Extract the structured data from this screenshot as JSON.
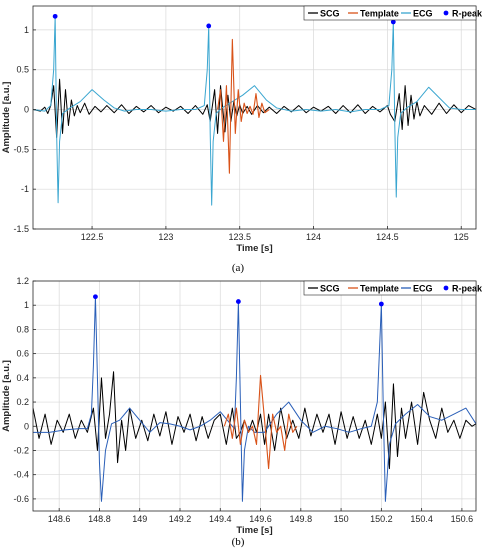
{
  "colors": {
    "SCG": "#000000",
    "Template": "#d95319",
    "ECG": "#3aa6d0",
    "ECG2": "#2a5fb8",
    "R-peaks": "#0000ff",
    "grid": "#d9d9d9",
    "axis": "#262626"
  },
  "chart_data": [
    {
      "type": "line",
      "caption": "(a)",
      "xlabel": "Time [s]",
      "ylabel": "Amplitude [a.u.]",
      "xlim": [
        122.1,
        125.1
      ],
      "ylim": [
        -1.5,
        1.3
      ],
      "xticks": [
        122.5,
        123,
        123.5,
        124,
        124.5,
        125
      ],
      "xtick_labels": [
        "122.5",
        "123",
        "123.5",
        "124",
        "124.5",
        "125"
      ],
      "yticks": [
        -1.5,
        -1,
        -0.5,
        0,
        0.5,
        1
      ],
      "ytick_labels": [
        "-1.5",
        "-1",
        "-0.5",
        "0",
        "0.5",
        "1"
      ],
      "grid": true,
      "legend_position": "top-right",
      "legend": [
        "SCG",
        "Template",
        "ECG",
        "R-peaks"
      ],
      "series": [
        {
          "name": "SCG",
          "x": [
            122.1,
            122.15,
            122.18,
            122.2,
            122.22,
            122.24,
            122.26,
            122.28,
            122.3,
            122.32,
            122.34,
            122.36,
            122.38,
            122.4,
            122.42,
            122.45,
            122.48,
            122.52,
            122.56,
            122.6,
            122.65,
            122.7,
            122.75,
            122.8,
            122.85,
            122.9,
            122.95,
            123.0,
            123.05,
            123.1,
            123.15,
            123.2,
            123.25,
            123.28,
            123.3,
            123.33,
            123.35,
            123.37,
            123.4,
            123.42,
            123.44,
            123.46,
            123.48,
            123.5,
            123.52,
            123.55,
            123.58,
            123.62,
            123.66,
            123.7,
            123.75,
            123.8,
            123.85,
            123.9,
            123.95,
            124.0,
            124.05,
            124.1,
            124.15,
            124.2,
            124.25,
            124.3,
            124.35,
            124.4,
            124.45,
            124.5,
            124.52,
            124.55,
            124.58,
            124.6,
            124.62,
            124.64,
            124.66,
            124.68,
            124.7,
            124.72,
            124.75,
            124.8,
            124.85,
            124.9,
            124.95,
            125.0,
            125.05,
            125.1
          ],
          "y": [
            0.0,
            -0.02,
            0.03,
            -0.05,
            0.05,
            0.3,
            -0.35,
            0.38,
            -0.3,
            0.25,
            -0.2,
            0.12,
            -0.08,
            0.05,
            -0.04,
            0.08,
            -0.06,
            0.04,
            -0.03,
            0.05,
            -0.04,
            0.06,
            -0.05,
            0.04,
            -0.03,
            0.05,
            -0.04,
            0.03,
            -0.02,
            0.04,
            -0.05,
            0.05,
            -0.06,
            0.06,
            -0.15,
            0.25,
            -0.3,
            0.3,
            -0.28,
            0.18,
            -0.15,
            0.1,
            -0.08,
            0.06,
            -0.05,
            0.04,
            -0.06,
            0.05,
            -0.04,
            0.03,
            -0.05,
            0.04,
            -0.03,
            0.05,
            -0.04,
            0.03,
            -0.02,
            0.04,
            -0.05,
            0.05,
            -0.04,
            0.06,
            -0.05,
            0.04,
            -0.03,
            0.05,
            -0.06,
            -0.15,
            0.2,
            -0.25,
            0.3,
            -0.2,
            0.18,
            -0.12,
            0.1,
            -0.08,
            0.05,
            -0.06,
            0.08,
            -0.05,
            0.06,
            -0.04,
            0.05,
            0.0
          ]
        },
        {
          "name": "Template",
          "x": [
            123.35,
            123.37,
            123.39,
            123.41,
            123.43,
            123.45,
            123.47,
            123.49,
            123.51,
            123.53,
            123.55,
            123.57,
            123.59,
            123.61,
            123.63,
            123.65,
            123.67,
            123.7
          ],
          "y": [
            0.0,
            0.25,
            -0.4,
            0.3,
            -0.8,
            0.88,
            -0.3,
            0.25,
            -0.15,
            0.08,
            -0.05,
            0.04,
            -0.06,
            0.2,
            -0.1,
            0.08,
            -0.04,
            0.0
          ]
        },
        {
          "name": "ECG",
          "x": [
            122.1,
            122.18,
            122.22,
            122.24,
            122.25,
            122.26,
            122.27,
            122.28,
            122.3,
            122.35,
            122.42,
            122.5,
            122.58,
            122.65,
            122.72,
            122.8,
            122.9,
            123.0,
            123.1,
            123.2,
            123.26,
            123.28,
            123.29,
            123.3,
            123.31,
            123.32,
            123.34,
            123.38,
            123.45,
            123.52,
            123.6,
            123.68,
            123.75,
            123.85,
            123.95,
            124.05,
            124.15,
            124.25,
            124.35,
            124.45,
            124.51,
            124.53,
            124.54,
            124.55,
            124.56,
            124.57,
            124.59,
            124.63,
            124.7,
            124.78,
            124.85,
            124.92,
            125.0,
            125.1
          ],
          "y": [
            0.0,
            -0.02,
            0.05,
            0.5,
            1.17,
            -0.3,
            -1.17,
            -0.4,
            -0.05,
            0.02,
            0.1,
            0.25,
            0.12,
            0.02,
            -0.02,
            0.0,
            0.0,
            -0.02,
            0.0,
            0.0,
            0.05,
            0.5,
            1.05,
            -0.3,
            -1.2,
            -0.4,
            -0.05,
            0.02,
            0.1,
            0.18,
            0.3,
            0.12,
            0.02,
            -0.02,
            0.0,
            -0.02,
            0.0,
            -0.03,
            0.0,
            0.0,
            0.05,
            0.5,
            1.1,
            -0.2,
            -1.1,
            -0.35,
            -0.05,
            0.02,
            0.1,
            0.28,
            0.15,
            0.02,
            0.0,
            0.0
          ]
        },
        {
          "name": "R-peaks",
          "x": [
            122.25,
            123.29,
            124.54
          ],
          "y": [
            1.17,
            1.05,
            1.1
          ]
        }
      ]
    },
    {
      "type": "line",
      "caption": "(b)",
      "xlabel": "Time [s]",
      "ylabel": "Amplitude [a.u.]",
      "xlim": [
        148.47,
        150.67
      ],
      "ylim": [
        -0.7,
        1.2
      ],
      "xticks": [
        148.6,
        148.8,
        149,
        149.2,
        149.4,
        149.6,
        149.8,
        150,
        150.2,
        150.4,
        150.6
      ],
      "xtick_labels": [
        "148.6",
        "148.8",
        "149",
        "149.2",
        "149.4",
        "149.6",
        "149.8",
        "150",
        "150.2",
        "150.4",
        "150.6"
      ],
      "yticks": [
        -0.6,
        -0.4,
        -0.2,
        0,
        0.2,
        0.4,
        0.6,
        0.8,
        1,
        1.2
      ],
      "ytick_labels": [
        "-0.6",
        "-0.4",
        "-0.2",
        "0",
        "0.2",
        "0.4",
        "0.6",
        "0.8",
        "1",
        "1.2"
      ],
      "grid": true,
      "legend_position": "top-right",
      "legend": [
        "SCG",
        "Template",
        "ECG",
        "R-peaks"
      ],
      "series": [
        {
          "name": "SCG",
          "x": [
            148.47,
            148.5,
            148.53,
            148.56,
            148.59,
            148.62,
            148.65,
            148.68,
            148.71,
            148.74,
            148.77,
            148.79,
            148.81,
            148.83,
            148.85,
            148.87,
            148.89,
            148.91,
            148.93,
            148.95,
            148.98,
            149.01,
            149.04,
            149.07,
            149.1,
            149.13,
            149.16,
            149.19,
            149.22,
            149.25,
            149.28,
            149.31,
            149.34,
            149.37,
            149.4,
            149.43,
            149.46,
            149.48,
            149.5,
            149.52,
            149.54,
            149.56,
            149.58,
            149.6,
            149.62,
            149.64,
            149.67,
            149.7,
            149.73,
            149.76,
            149.79,
            149.82,
            149.85,
            149.88,
            149.91,
            149.94,
            149.97,
            150.0,
            150.03,
            150.06,
            150.09,
            150.12,
            150.15,
            150.18,
            150.2,
            150.22,
            150.24,
            150.26,
            150.28,
            150.3,
            150.32,
            150.35,
            150.38,
            150.41,
            150.44,
            150.47,
            150.5,
            150.53,
            150.56,
            150.59,
            150.62,
            150.65,
            150.67
          ],
          "y": [
            0.15,
            -0.1,
            0.1,
            -0.15,
            0.05,
            -0.05,
            0.1,
            -0.1,
            0.05,
            -0.05,
            0.15,
            -0.2,
            0.4,
            -0.1,
            0.1,
            0.45,
            -0.3,
            0.05,
            -0.2,
            0.15,
            -0.1,
            0.05,
            -0.12,
            0.1,
            -0.08,
            0.12,
            -0.15,
            0.08,
            -0.05,
            0.1,
            -0.12,
            0.08,
            -0.1,
            0.05,
            0.1,
            -0.15,
            0.15,
            -0.1,
            -0.05,
            0.05,
            -0.05,
            0.05,
            -0.05,
            0.1,
            -0.15,
            0.1,
            -0.2,
            0.15,
            -0.1,
            0.05,
            -0.1,
            0.15,
            -0.08,
            0.1,
            -0.05,
            0.1,
            -0.15,
            0.12,
            -0.1,
            0.08,
            -0.1,
            0.05,
            -0.15,
            0.1,
            -0.1,
            0.2,
            -0.35,
            0.35,
            -0.25,
            0.15,
            -0.1,
            0.2,
            -0.15,
            0.28,
            0.05,
            -0.1,
            0.15,
            -0.05,
            0.05,
            -0.1,
            0.05,
            0.0,
            0.02
          ]
        },
        {
          "name": "Template",
          "x": [
            149.42,
            149.44,
            149.46,
            149.48,
            149.5,
            149.52,
            149.54,
            149.56,
            149.58,
            149.6,
            149.62,
            149.64,
            149.66,
            149.68,
            149.7,
            149.72,
            149.74,
            149.76,
            149.78
          ],
          "y": [
            0.0,
            0.1,
            -0.1,
            0.15,
            -0.15,
            0.05,
            -0.05,
            0.0,
            -0.15,
            0.42,
            0.05,
            -0.35,
            0.1,
            -0.05,
            0.0,
            -0.2,
            0.1,
            -0.05,
            0.0
          ]
        },
        {
          "name": "ECG",
          "x": [
            148.47,
            148.55,
            148.63,
            148.7,
            148.74,
            148.76,
            148.77,
            148.78,
            148.79,
            148.8,
            148.81,
            148.83,
            148.86,
            148.9,
            148.95,
            149.0,
            149.05,
            149.1,
            149.15,
            149.2,
            149.25,
            149.3,
            149.35,
            149.4,
            149.45,
            149.47,
            149.48,
            149.49,
            149.5,
            149.51,
            149.52,
            149.54,
            149.57,
            149.62,
            149.68,
            149.74,
            149.8,
            149.86,
            149.92,
            149.98,
            150.04,
            150.1,
            150.15,
            150.18,
            150.19,
            150.2,
            150.21,
            150.22,
            150.24,
            150.27,
            150.32,
            150.38,
            150.44,
            150.5,
            150.56,
            150.62,
            150.67
          ],
          "y": [
            -0.05,
            -0.05,
            -0.03,
            -0.02,
            -0.02,
            0.1,
            0.5,
            1.07,
            0.4,
            -0.3,
            -0.62,
            -0.2,
            0.02,
            0.05,
            0.15,
            0.05,
            -0.05,
            0.03,
            0.02,
            0.0,
            -0.03,
            0.0,
            0.05,
            0.12,
            0.02,
            -0.02,
            0.4,
            1.03,
            0.2,
            -0.62,
            -0.2,
            0.0,
            -0.05,
            -0.05,
            0.1,
            0.2,
            0.05,
            -0.05,
            0.0,
            -0.02,
            -0.05,
            -0.02,
            0.0,
            0.2,
            0.6,
            1.01,
            0.1,
            -0.62,
            -0.15,
            0.02,
            0.1,
            0.18,
            0.08,
            0.05,
            0.1,
            0.15,
            0.02
          ]
        },
        {
          "name": "R-peaks",
          "x": [
            148.78,
            149.49,
            150.2
          ],
          "y": [
            1.07,
            1.03,
            1.01
          ]
        }
      ]
    }
  ]
}
